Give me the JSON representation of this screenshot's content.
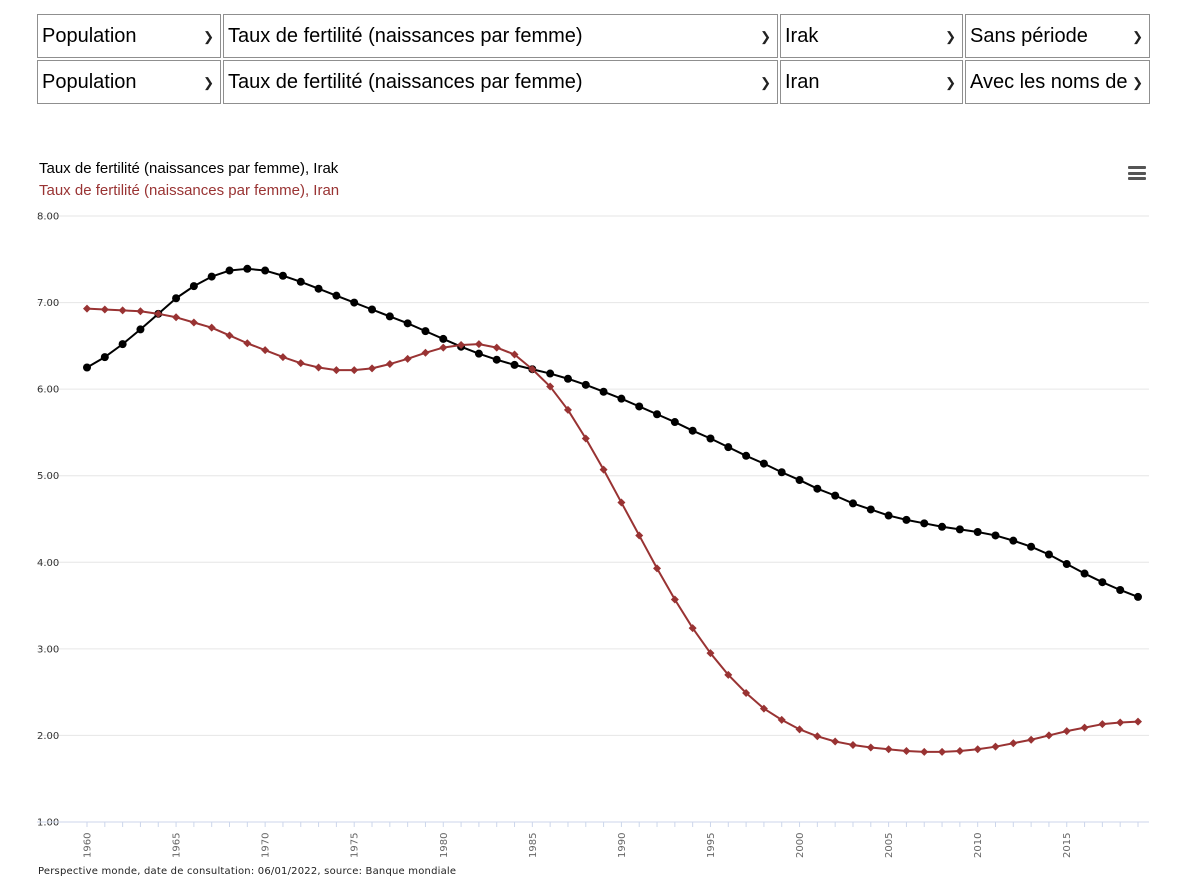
{
  "selectors": {
    "row1": [
      {
        "value": "Population"
      },
      {
        "value": "Taux de fertilité (naissances par femme)"
      },
      {
        "value": "Irak"
      },
      {
        "value": "Sans période"
      }
    ],
    "row2": [
      {
        "value": "Population"
      },
      {
        "value": "Taux de fertilité (naissances par femme)"
      },
      {
        "value": "Iran"
      },
      {
        "value": "Avec les noms de"
      }
    ]
  },
  "icons": {
    "menu": "hamburger-menu-icon",
    "dropdown": "chevron-down-icon"
  },
  "footer": "Perspective monde, date de consultation: 06/01/2022, source: Banque mondiale",
  "chart_data": {
    "type": "line",
    "title": "",
    "xlabel": "",
    "ylabel": "",
    "ylim": [
      1.0,
      8.0
    ],
    "yticks": [
      "1.00",
      "2.00",
      "3.00",
      "4.00",
      "5.00",
      "6.00",
      "7.00",
      "8.00"
    ],
    "xlim": [
      1960,
      2019
    ],
    "xticks": [
      "1960",
      "1965",
      "1970",
      "1975",
      "1980",
      "1985",
      "1990",
      "1995",
      "2000",
      "2005",
      "2010",
      "2015"
    ],
    "grid": true,
    "legend_position": "top-left",
    "x": [
      1960,
      1961,
      1962,
      1963,
      1964,
      1965,
      1966,
      1967,
      1968,
      1969,
      1970,
      1971,
      1972,
      1973,
      1974,
      1975,
      1976,
      1977,
      1978,
      1979,
      1980,
      1981,
      1982,
      1983,
      1984,
      1985,
      1986,
      1987,
      1988,
      1989,
      1990,
      1991,
      1992,
      1993,
      1994,
      1995,
      1996,
      1997,
      1998,
      1999,
      2000,
      2001,
      2002,
      2003,
      2004,
      2005,
      2006,
      2007,
      2008,
      2009,
      2010,
      2011,
      2012,
      2013,
      2014,
      2015,
      2016,
      2017,
      2018,
      2019
    ],
    "series": [
      {
        "name": "Taux de fertilité (naissances par femme), Irak",
        "color": "#000000",
        "marker": "circle",
        "values": [
          6.25,
          6.37,
          6.52,
          6.69,
          6.87,
          7.05,
          7.19,
          7.3,
          7.37,
          7.39,
          7.37,
          7.31,
          7.24,
          7.16,
          7.08,
          7.0,
          6.92,
          6.84,
          6.76,
          6.67,
          6.58,
          6.49,
          6.41,
          6.34,
          6.28,
          6.23,
          6.18,
          6.12,
          6.05,
          5.97,
          5.89,
          5.8,
          5.71,
          5.62,
          5.52,
          5.43,
          5.33,
          5.23,
          5.14,
          5.04,
          4.95,
          4.85,
          4.77,
          4.68,
          4.61,
          4.54,
          4.49,
          4.45,
          4.41,
          4.38,
          4.35,
          4.31,
          4.25,
          4.18,
          4.09,
          3.98,
          3.87,
          3.77,
          3.68,
          3.6
        ]
      },
      {
        "name": "Taux de fertilité (naissances par femme), Iran",
        "color": "#993333",
        "marker": "diamond",
        "values": [
          6.93,
          6.92,
          6.91,
          6.9,
          6.87,
          6.83,
          6.77,
          6.71,
          6.62,
          6.53,
          6.45,
          6.37,
          6.3,
          6.25,
          6.22,
          6.22,
          6.24,
          6.29,
          6.35,
          6.42,
          6.48,
          6.51,
          6.52,
          6.48,
          6.4,
          6.23,
          6.03,
          5.76,
          5.43,
          5.07,
          4.69,
          4.31,
          3.93,
          3.57,
          3.24,
          2.95,
          2.7,
          2.49,
          2.31,
          2.18,
          2.07,
          1.99,
          1.93,
          1.89,
          1.86,
          1.84,
          1.82,
          1.81,
          1.81,
          1.82,
          1.84,
          1.87,
          1.91,
          1.95,
          2.0,
          2.05,
          2.09,
          2.13,
          2.15,
          2.16
        ]
      }
    ]
  }
}
